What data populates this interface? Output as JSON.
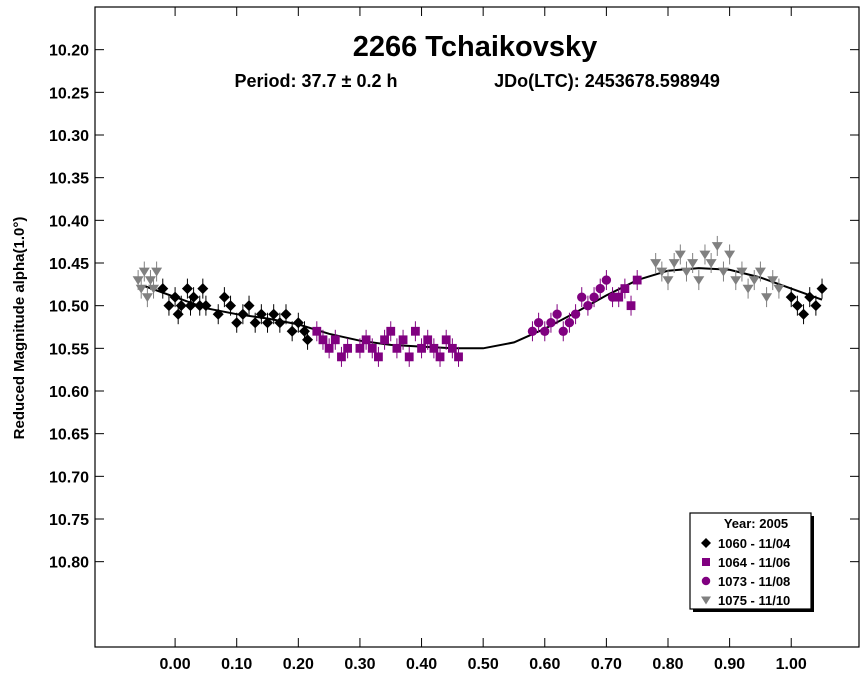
{
  "chart_data": {
    "type": "scatter",
    "title": "2266 Tchaikovsky",
    "subtitle_period": "Period: 37.7 ± 0.2 h",
    "subtitle_epoch": "JDo(LTC): 2453678.598949",
    "ylabel": "Reduced Magnitude alpha(1.0°)",
    "xlabel": "",
    "xlim": [
      -0.13,
      1.11
    ],
    "ylim": [
      10.15,
      10.9
    ],
    "y_inverted": true,
    "grid": false,
    "x_ticks": [
      {
        "value": 0.0,
        "label": "0.00"
      },
      {
        "value": 0.1,
        "label": "0.10"
      },
      {
        "value": 0.2,
        "label": "0.20"
      },
      {
        "value": 0.3,
        "label": "0.30"
      },
      {
        "value": 0.4,
        "label": "0.40"
      },
      {
        "value": 0.5,
        "label": "0.50"
      },
      {
        "value": 0.6,
        "label": "0.60"
      },
      {
        "value": 0.7,
        "label": "0.70"
      },
      {
        "value": 0.8,
        "label": "0.80"
      },
      {
        "value": 0.9,
        "label": "0.90"
      },
      {
        "value": 1.0,
        "label": "1.00"
      }
    ],
    "y_ticks": [
      {
        "value": 10.2,
        "label": "10.20"
      },
      {
        "value": 10.25,
        "label": "10.25"
      },
      {
        "value": 10.3,
        "label": "10.30"
      },
      {
        "value": 10.35,
        "label": "10.35"
      },
      {
        "value": 10.4,
        "label": "10.40"
      },
      {
        "value": 10.45,
        "label": "10.45"
      },
      {
        "value": 10.5,
        "label": "10.50"
      },
      {
        "value": 10.55,
        "label": "10.55"
      },
      {
        "value": 10.6,
        "label": "10.60"
      },
      {
        "value": 10.65,
        "label": "10.65"
      },
      {
        "value": 10.7,
        "label": "10.70"
      },
      {
        "value": 10.75,
        "label": "10.75"
      },
      {
        "value": 10.8,
        "label": "10.80"
      }
    ],
    "fit_curve": {
      "x": [
        -0.05,
        0.0,
        0.05,
        0.1,
        0.15,
        0.2,
        0.25,
        0.3,
        0.35,
        0.4,
        0.45,
        0.5,
        0.55,
        0.6,
        0.65,
        0.7,
        0.75,
        0.8,
        0.85,
        0.9,
        0.95,
        1.0,
        1.05
      ],
      "y": [
        10.477,
        10.49,
        10.503,
        10.51,
        10.515,
        10.522,
        10.533,
        10.541,
        10.546,
        10.548,
        10.55,
        10.55,
        10.543,
        10.527,
        10.508,
        10.488,
        10.47,
        10.459,
        10.456,
        10.458,
        10.467,
        10.48,
        10.493
      ]
    },
    "legend": {
      "title": "Year: 2005",
      "placement": "bottom-right",
      "entries": [
        {
          "label": "1060 - 11/04",
          "marker": "diamond",
          "color": "#000000"
        },
        {
          "label": "1064 - 11/06",
          "marker": "square",
          "color": "#800080"
        },
        {
          "label": "1073 - 11/08",
          "marker": "circle",
          "color": "#800080"
        },
        {
          "label": "1075 - 11/10",
          "marker": "triangle-down",
          "color": "#808080"
        }
      ]
    },
    "series": [
      {
        "name": "1060 - 11/04",
        "marker": "diamond",
        "color": "#000000",
        "x": [
          -0.02,
          -0.01,
          0.0,
          0.005,
          0.01,
          0.02,
          0.025,
          0.03,
          0.04,
          0.045,
          0.05,
          0.07,
          0.08,
          0.09,
          0.1,
          0.11,
          0.12,
          0.13,
          0.14,
          0.15,
          0.16,
          0.17,
          0.18,
          0.19,
          0.2,
          0.21,
          0.215,
          1.0,
          1.01,
          1.02,
          1.03,
          1.04,
          1.05
        ],
        "y": [
          10.48,
          10.5,
          10.49,
          10.51,
          10.5,
          10.48,
          10.5,
          10.49,
          10.5,
          10.48,
          10.5,
          10.51,
          10.49,
          10.5,
          10.52,
          10.51,
          10.5,
          10.52,
          10.51,
          10.52,
          10.51,
          10.52,
          10.51,
          10.53,
          10.52,
          10.53,
          10.54,
          10.49,
          10.5,
          10.51,
          10.49,
          10.5,
          10.48
        ]
      },
      {
        "name": "1064 - 11/06",
        "marker": "square",
        "color": "#800080",
        "x": [
          0.23,
          0.24,
          0.25,
          0.26,
          0.27,
          0.28,
          0.3,
          0.31,
          0.32,
          0.33,
          0.34,
          0.35,
          0.36,
          0.37,
          0.38,
          0.39,
          0.4,
          0.41,
          0.42,
          0.43,
          0.44,
          0.45,
          0.46,
          0.72,
          0.73,
          0.74,
          0.75
        ],
        "y": [
          10.53,
          10.54,
          10.55,
          10.54,
          10.56,
          10.55,
          10.55,
          10.54,
          10.55,
          10.56,
          10.54,
          10.53,
          10.55,
          10.54,
          10.56,
          10.53,
          10.55,
          10.54,
          10.55,
          10.56,
          10.54,
          10.55,
          10.56,
          10.49,
          10.48,
          10.5,
          10.47
        ]
      },
      {
        "name": "1073 - 11/08",
        "marker": "circle",
        "color": "#800080",
        "x": [
          0.58,
          0.59,
          0.6,
          0.61,
          0.62,
          0.63,
          0.64,
          0.65,
          0.66,
          0.67,
          0.68,
          0.69,
          0.7,
          0.71
        ],
        "y": [
          10.53,
          10.52,
          10.53,
          10.52,
          10.51,
          10.53,
          10.52,
          10.51,
          10.49,
          10.5,
          10.49,
          10.48,
          10.47,
          10.49
        ]
      },
      {
        "name": "1075 - 11/10",
        "marker": "triangle-down",
        "color": "#808080",
        "x": [
          -0.06,
          -0.055,
          -0.05,
          -0.045,
          -0.04,
          -0.035,
          -0.03,
          0.78,
          0.79,
          0.8,
          0.81,
          0.82,
          0.83,
          0.84,
          0.85,
          0.86,
          0.87,
          0.88,
          0.89,
          0.9,
          0.91,
          0.92,
          0.93,
          0.94,
          0.95,
          0.96,
          0.97,
          0.98
        ],
        "y": [
          10.47,
          10.48,
          10.46,
          10.49,
          10.47,
          10.48,
          10.46,
          10.45,
          10.46,
          10.47,
          10.45,
          10.44,
          10.46,
          10.45,
          10.47,
          10.44,
          10.45,
          10.43,
          10.46,
          10.44,
          10.47,
          10.46,
          10.48,
          10.47,
          10.46,
          10.49,
          10.47,
          10.48
        ]
      }
    ]
  }
}
